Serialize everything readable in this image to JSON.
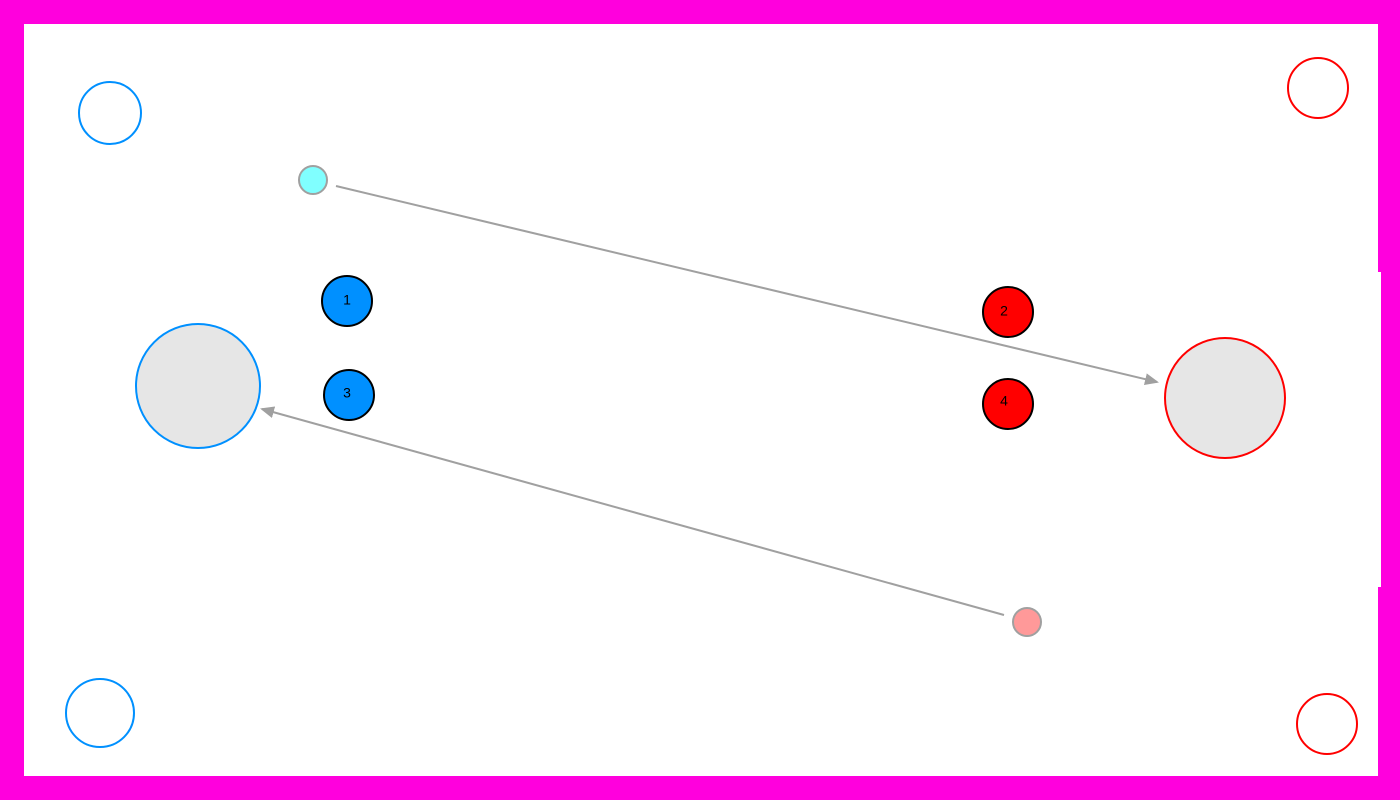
{
  "colors": {
    "frame": "#ff00dd",
    "field": "#ffffff",
    "team_blue": "#0090ff",
    "team_red": "#ff0000",
    "goal_fill": "#e6e6e6",
    "arrow": "#a0a0a0",
    "ball_blue_team": "#80ffff",
    "ball_red_team": "#ff9999",
    "token_outline": "#000000"
  },
  "field": {
    "corner_markers": [
      {
        "team": "blue",
        "corner": "top-left"
      },
      {
        "team": "red",
        "corner": "top-right"
      },
      {
        "team": "blue",
        "corner": "bottom-left"
      },
      {
        "team": "red",
        "corner": "bottom-right"
      }
    ],
    "goals": [
      {
        "team": "blue",
        "side": "left"
      },
      {
        "team": "red",
        "side": "right"
      }
    ],
    "balls": [
      {
        "team": "blue",
        "direction": "toward-red-goal"
      },
      {
        "team": "red",
        "direction": "toward-blue-goal"
      }
    ],
    "players": [
      {
        "label": "1",
        "team": "blue"
      },
      {
        "label": "2",
        "team": "red"
      },
      {
        "label": "3",
        "team": "blue"
      },
      {
        "label": "4",
        "team": "red"
      }
    ]
  }
}
